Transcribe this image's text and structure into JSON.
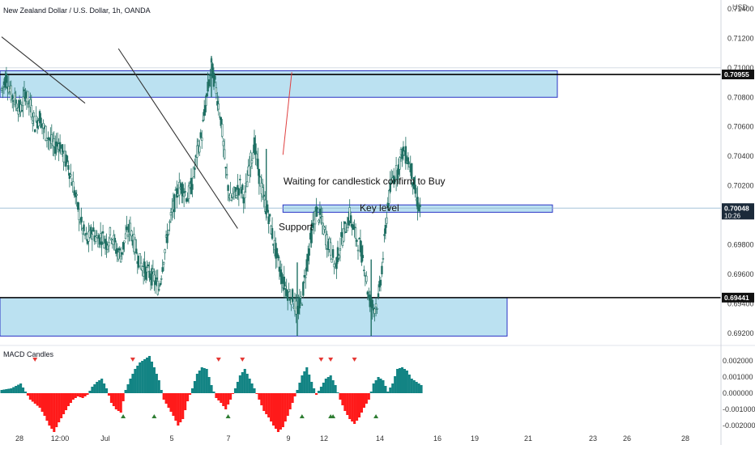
{
  "header": {
    "title": "New Zealand Dollar / U.S. Dollar, 1h, OANDA",
    "currency": "USD"
  },
  "chart_data": {
    "type": "candlestick",
    "symbol": "New Zealand Dollar / U.S. Dollar",
    "interval": "1h",
    "exchange": "OANDA",
    "price_ticks": [
      "0.71400",
      "0.71200",
      "0.71000",
      "0.70800",
      "0.70600",
      "0.70400",
      "0.70200",
      "0.70000",
      "0.69800",
      "0.69600",
      "0.69400",
      "0.69200"
    ],
    "price_ylim": [
      0.691,
      0.7146
    ],
    "time_ticks": [
      "28",
      "12:00",
      "Jul",
      "5",
      "7",
      "9",
      "12",
      "14",
      "16",
      "19",
      "21",
      "23",
      "26",
      "28"
    ],
    "price_labels": {
      "upper_level": "0.70955",
      "current_price": "0.70048",
      "countdown": "10:26",
      "lower_level": "0.69441"
    },
    "levels": {
      "upper": 0.70955,
      "current": 0.70048,
      "lower": 0.69441
    },
    "zones": [
      {
        "name": "upper-resistance-zone",
        "low": 0.708,
        "high": 0.7098
      },
      {
        "name": "key-level-zone",
        "low": 0.7002,
        "high": 0.7007
      },
      {
        "name": "lower-support-zone",
        "low": 0.6918,
        "high": 0.6944
      }
    ],
    "price_path": [
      [
        0,
        0.7085
      ],
      [
        2,
        0.7094
      ],
      [
        4,
        0.7082
      ],
      [
        6,
        0.7077
      ],
      [
        8,
        0.7071
      ],
      [
        10,
        0.7083
      ],
      [
        12,
        0.7074
      ],
      [
        14,
        0.7062
      ],
      [
        16,
        0.7067
      ],
      [
        18,
        0.7057
      ],
      [
        20,
        0.7052
      ],
      [
        22,
        0.7046
      ],
      [
        24,
        0.705
      ],
      [
        26,
        0.704
      ],
      [
        28,
        0.7034
      ],
      [
        30,
        0.702
      ],
      [
        32,
        0.7005
      ],
      [
        34,
        0.699
      ],
      [
        36,
        0.6982
      ],
      [
        38,
        0.6989
      ],
      [
        40,
        0.6984
      ],
      [
        42,
        0.6986
      ],
      [
        44,
        0.6981
      ],
      [
        46,
        0.6988
      ],
      [
        48,
        0.6977
      ],
      [
        50,
        0.6973
      ],
      [
        52,
        0.6985
      ],
      [
        54,
        0.6991
      ],
      [
        56,
        0.6978
      ],
      [
        58,
        0.6968
      ],
      [
        60,
        0.6963
      ],
      [
        62,
        0.696
      ],
      [
        64,
        0.6957
      ],
      [
        66,
        0.695
      ],
      [
        68,
        0.6972
      ],
      [
        70,
        0.699
      ],
      [
        72,
        0.7005
      ],
      [
        74,
        0.7018
      ],
      [
        76,
        0.7019
      ],
      [
        78,
        0.7012
      ],
      [
        80,
        0.7022
      ],
      [
        82,
        0.7042
      ],
      [
        84,
        0.7055
      ],
      [
        86,
        0.708
      ],
      [
        88,
        0.7101
      ],
      [
        90,
        0.7085
      ],
      [
        92,
        0.7065
      ],
      [
        94,
        0.703
      ],
      [
        96,
        0.701
      ],
      [
        98,
        0.7015
      ],
      [
        100,
        0.702
      ],
      [
        102,
        0.7012
      ],
      [
        104,
        0.7033
      ],
      [
        106,
        0.7048
      ],
      [
        108,
        0.7027
      ],
      [
        110,
        0.701
      ],
      [
        112,
        0.7
      ],
      [
        114,
        0.6983
      ],
      [
        116,
        0.6968
      ],
      [
        118,
        0.6955
      ],
      [
        120,
        0.6948
      ],
      [
        122,
        0.6944
      ],
      [
        124,
        0.6934
      ],
      [
        126,
        0.6944
      ],
      [
        128,
        0.6968
      ],
      [
        130,
        0.6987
      ],
      [
        132,
        0.7003
      ],
      [
        134,
        0.6997
      ],
      [
        136,
        0.6985
      ],
      [
        138,
        0.6977
      ],
      [
        140,
        0.6965
      ],
      [
        142,
        0.698
      ],
      [
        144,
        0.699
      ],
      [
        146,
        0.7
      ],
      [
        148,
        0.6988
      ],
      [
        150,
        0.698
      ],
      [
        152,
        0.6968
      ],
      [
        154,
        0.6944
      ],
      [
        156,
        0.6937
      ],
      [
        158,
        0.6942
      ],
      [
        160,
        0.6972
      ],
      [
        162,
        0.7008
      ],
      [
        164,
        0.7025
      ],
      [
        166,
        0.703
      ],
      [
        168,
        0.7043
      ],
      [
        170,
        0.704
      ],
      [
        172,
        0.703
      ],
      [
        174,
        0.701
      ],
      [
        176,
        0.7003
      ]
    ],
    "trendlines": [
      {
        "name": "descending-trendline-left",
        "from": [
          0,
          0.7121
        ],
        "to": [
          35,
          0.7076
        ]
      },
      {
        "name": "descending-trendline-main",
        "from": [
          49,
          0.7113
        ],
        "to": [
          99,
          0.6991
        ]
      },
      {
        "name": "projection-arrow",
        "from": [
          118,
          0.7041
        ],
        "to": [
          120,
          0.7097
        ]
      }
    ],
    "annotations": [
      {
        "name": "buy-note",
        "text": "Waiting for candlestick confirm to Buy",
        "price": 0.7023,
        "t": 108
      },
      {
        "name": "key-level-note",
        "text": "Key level",
        "price": 0.7005,
        "t": 140
      },
      {
        "name": "support-note",
        "text": "Support",
        "price": 0.6992,
        "t": 106
      }
    ],
    "indicator": {
      "name": "MACD Candles",
      "ticks": [
        "0.002000",
        "0.001000",
        "0.000000",
        "-0.001000",
        "-0.002000"
      ],
      "ylim": [
        -0.0023,
        0.0024
      ],
      "histogram": [
        [
          0,
          0.0002
        ],
        [
          4,
          0.0003
        ],
        [
          8,
          0.0006
        ],
        [
          12,
          -0.0004
        ],
        [
          16,
          -0.0009
        ],
        [
          18,
          -0.0014
        ],
        [
          20,
          -0.002
        ],
        [
          22,
          -0.0024
        ],
        [
          24,
          -0.0018
        ],
        [
          26,
          -0.0013
        ],
        [
          28,
          -0.0008
        ],
        [
          30,
          -0.0004
        ],
        [
          32,
          -0.0002
        ],
        [
          34,
          -0.0003
        ],
        [
          36,
          -0.0001
        ],
        [
          38,
          0.0004
        ],
        [
          40,
          0.0007
        ],
        [
          42,
          0.0009
        ],
        [
          44,
          0.0003
        ],
        [
          46,
          -0.0006
        ],
        [
          48,
          -0.001
        ],
        [
          50,
          -0.0012
        ],
        [
          52,
          0.0002
        ],
        [
          54,
          0.0009
        ],
        [
          56,
          0.0015
        ],
        [
          58,
          0.0019
        ],
        [
          60,
          0.0021
        ],
        [
          62,
          0.0023
        ],
        [
          64,
          0.0016
        ],
        [
          66,
          0.0008
        ],
        [
          68,
          -0.0004
        ],
        [
          70,
          -0.0009
        ],
        [
          72,
          -0.0014
        ],
        [
          74,
          -0.002
        ],
        [
          76,
          -0.0016
        ],
        [
          78,
          -0.0005
        ],
        [
          80,
          0.0003
        ],
        [
          82,
          0.0012
        ],
        [
          84,
          0.0016
        ],
        [
          86,
          0.0015
        ],
        [
          88,
          0.0005
        ],
        [
          90,
          -0.0003
        ],
        [
          92,
          -0.0006
        ],
        [
          94,
          -0.001
        ],
        [
          96,
          -0.0004
        ],
        [
          98,
          0.0003
        ],
        [
          100,
          0.0011
        ],
        [
          102,
          0.0015
        ],
        [
          104,
          0.0009
        ],
        [
          106,
          0.0003
        ],
        [
          108,
          -0.0004
        ],
        [
          110,
          -0.0011
        ],
        [
          112,
          -0.0015
        ],
        [
          114,
          -0.002
        ],
        [
          116,
          -0.0024
        ],
        [
          118,
          -0.0021
        ],
        [
          120,
          -0.0014
        ],
        [
          122,
          -0.0006
        ],
        [
          124,
          0.0002
        ],
        [
          126,
          0.0011
        ],
        [
          128,
          0.0016
        ],
        [
          130,
          0.0007
        ],
        [
          132,
          -0.0001
        ],
        [
          134,
          0.0004
        ],
        [
          136,
          0.0009
        ],
        [
          138,
          0.0011
        ],
        [
          140,
          0.0005
        ],
        [
          142,
          -0.0004
        ],
        [
          144,
          -0.0011
        ],
        [
          146,
          -0.0016
        ],
        [
          148,
          -0.0019
        ],
        [
          150,
          -0.0015
        ],
        [
          152,
          -0.0009
        ],
        [
          154,
          -0.0004
        ],
        [
          156,
          0.0006
        ],
        [
          158,
          0.001
        ],
        [
          160,
          0.0008
        ],
        [
          162,
          0.0001
        ],
        [
          164,
          0.0006
        ],
        [
          166,
          0.0015
        ],
        [
          168,
          0.0016
        ],
        [
          170,
          0.0014
        ],
        [
          172,
          0.0009
        ],
        [
          174,
          0.0007
        ],
        [
          176,
          0.0005
        ]
      ],
      "sell_markers": [
        14,
        55,
        91,
        101,
        134,
        138,
        148
      ],
      "buy_markers": [
        51,
        64,
        95,
        126,
        138,
        139,
        157
      ]
    },
    "colors": {
      "candle_up": "#26a69a",
      "candle_down": "#ef5350",
      "zone_fill": "#b7dff0",
      "zone_border": "#2933c4",
      "level_line": "#000000",
      "macd_up": "#138484",
      "macd_down": "#ff1a1a",
      "trendline": "#333333",
      "projection": "#e04040"
    },
    "grid": false,
    "legend": "top-left"
  }
}
